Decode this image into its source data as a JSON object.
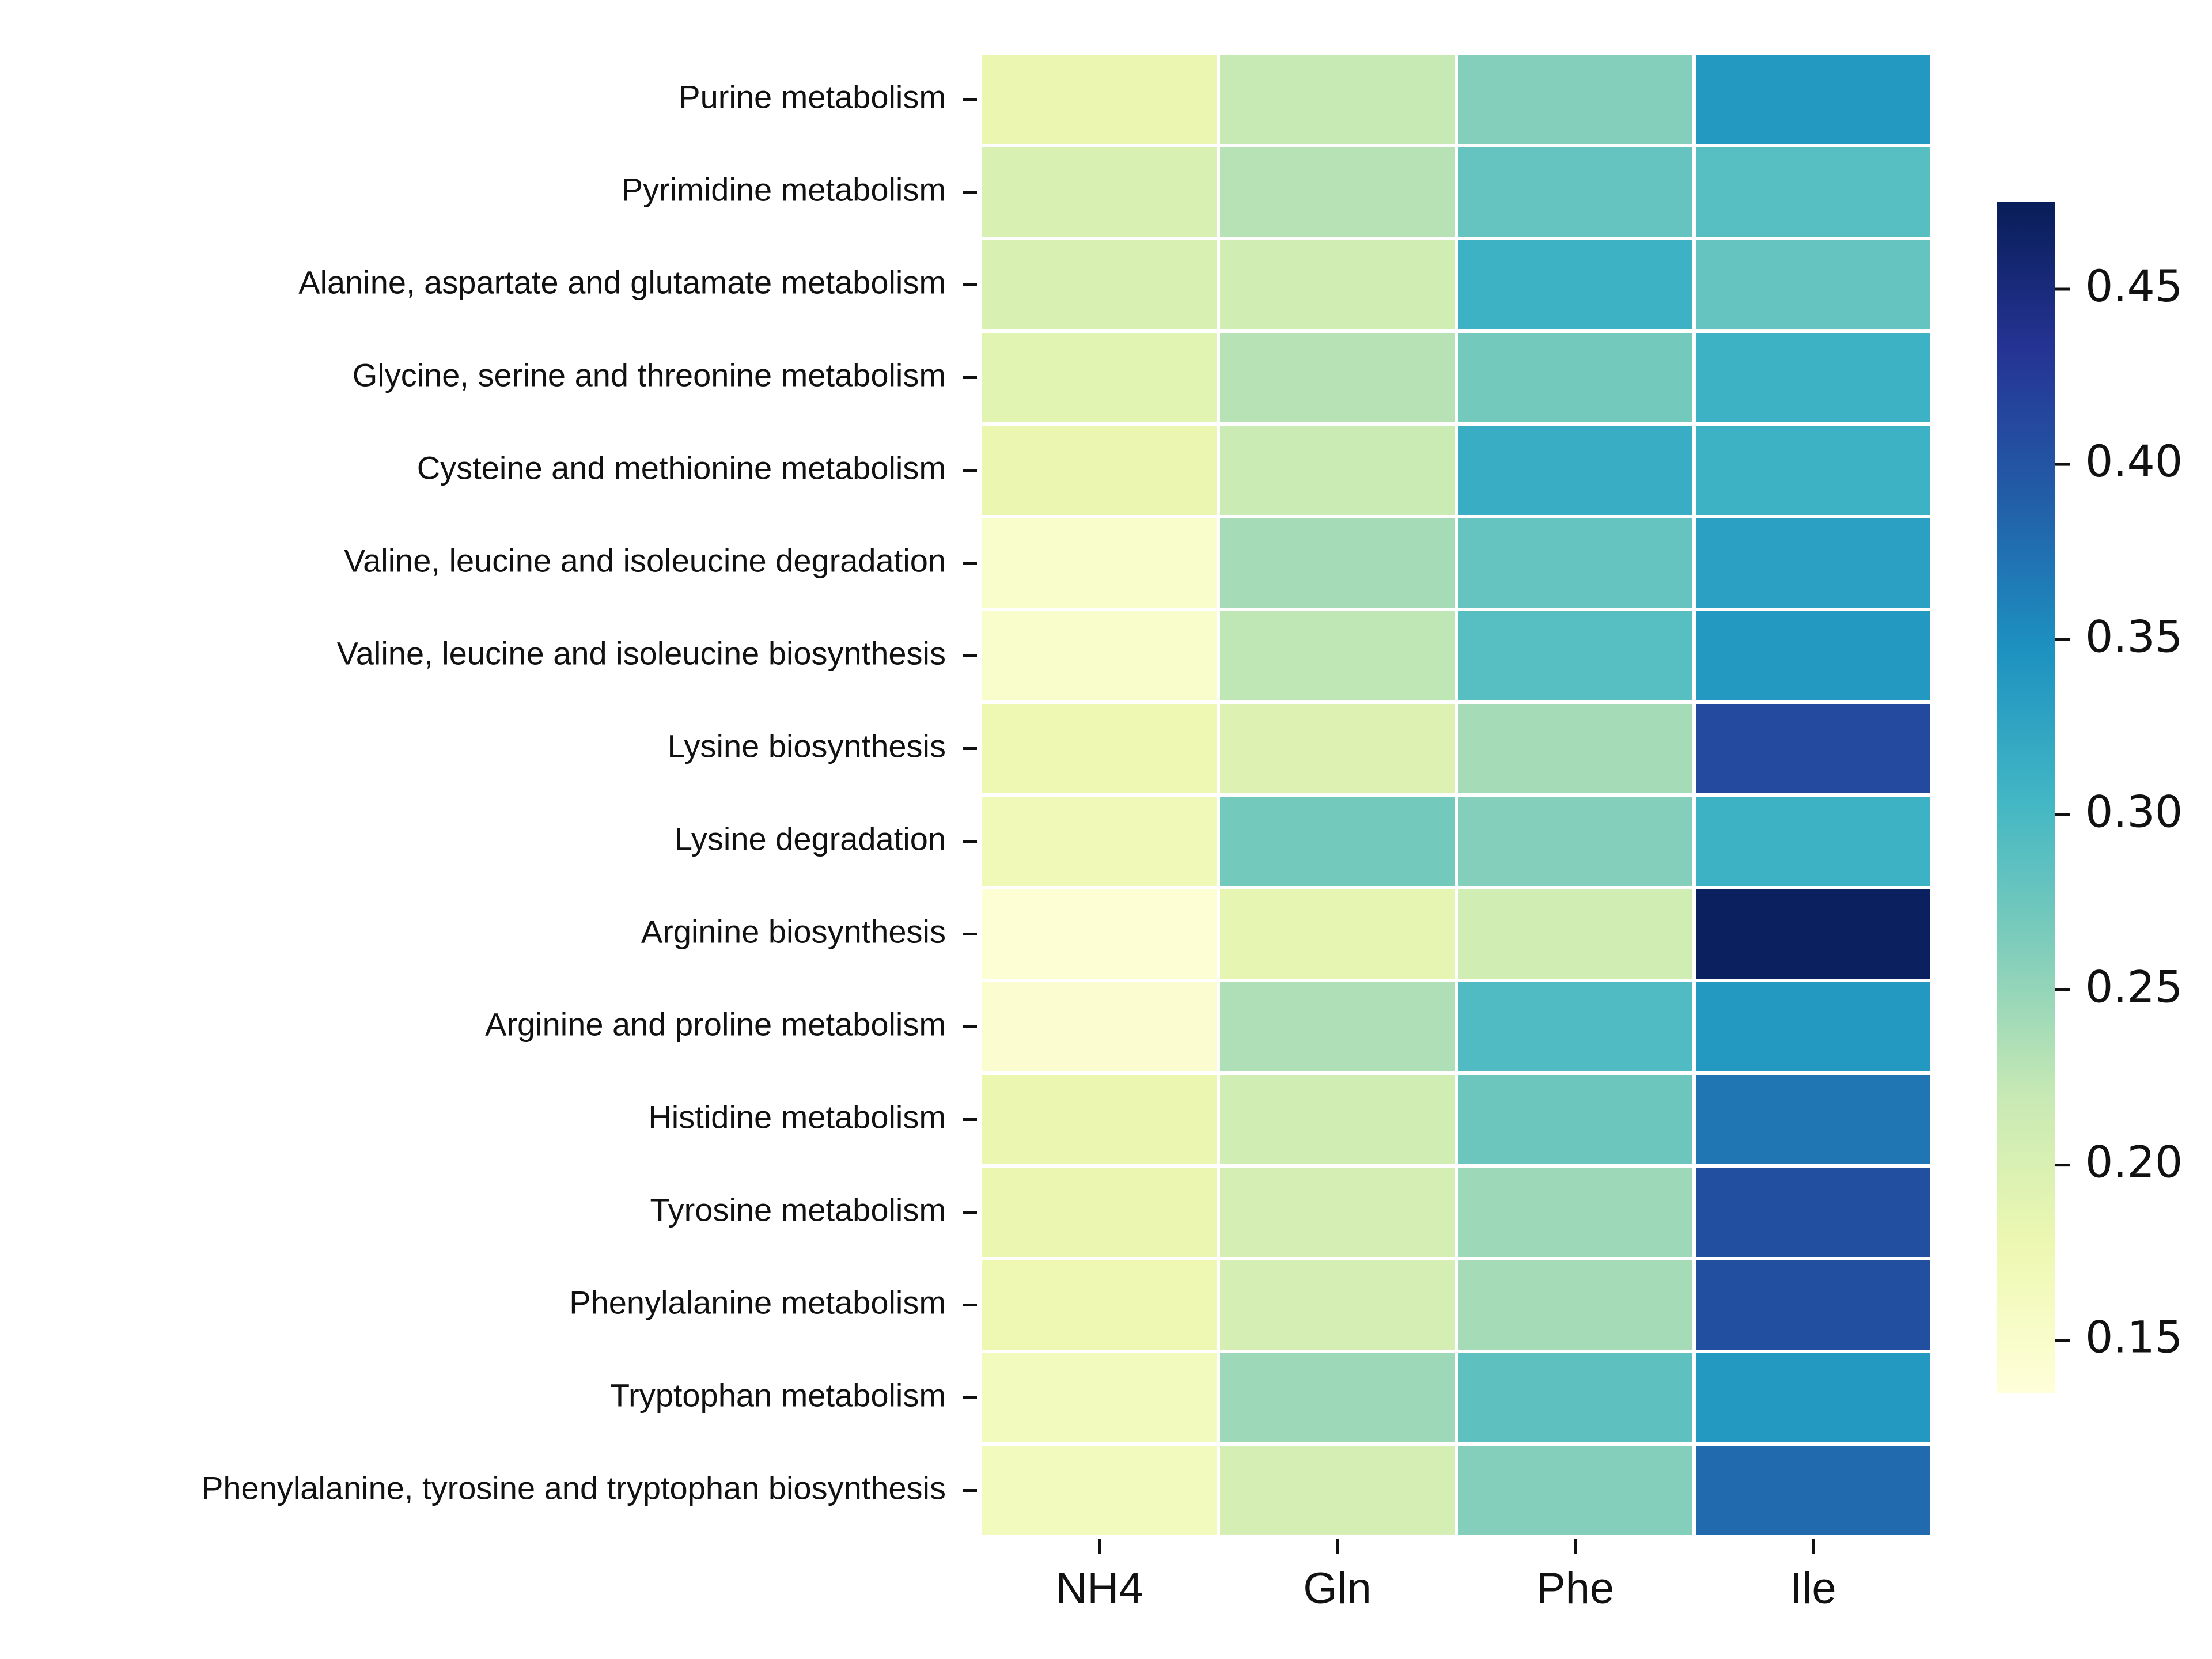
{
  "chart_data": {
    "type": "heatmap",
    "title": "",
    "xlabel": "",
    "ylabel": "",
    "columns": [
      "NH4",
      "Gln",
      "Phe",
      "Ile"
    ],
    "rows": [
      "Purine metabolism",
      "Pyrimidine metabolism",
      "Alanine, aspartate and glutamate metabolism",
      "Glycine, serine and threonine metabolism",
      "Cysteine and methionine metabolism",
      "Valine, leucine and isoleucine degradation",
      "Valine, leucine and isoleucine biosynthesis",
      "Lysine biosynthesis",
      "Lysine degradation",
      "Arginine biosynthesis",
      "Arginine and proline metabolism",
      "Histidine metabolism",
      "Tyrosine metabolism",
      "Phenylalanine metabolism",
      "Tryptophan metabolism",
      "Phenylalanine, tyrosine and tryptophan biosynthesis"
    ],
    "values": [
      [
        0.18,
        0.22,
        0.26,
        0.34
      ],
      [
        0.2,
        0.23,
        0.28,
        0.29
      ],
      [
        0.2,
        0.21,
        0.31,
        0.28
      ],
      [
        0.19,
        0.23,
        0.27,
        0.31
      ],
      [
        0.18,
        0.215,
        0.315,
        0.31
      ],
      [
        0.15,
        0.24,
        0.28,
        0.33
      ],
      [
        0.15,
        0.225,
        0.29,
        0.34
      ],
      [
        0.175,
        0.195,
        0.24,
        0.41
      ],
      [
        0.17,
        0.27,
        0.26,
        0.31
      ],
      [
        0.14,
        0.185,
        0.21,
        0.47
      ],
      [
        0.145,
        0.235,
        0.295,
        0.34
      ],
      [
        0.18,
        0.21,
        0.275,
        0.37
      ],
      [
        0.18,
        0.205,
        0.245,
        0.405
      ],
      [
        0.175,
        0.205,
        0.24,
        0.405
      ],
      [
        0.165,
        0.245,
        0.285,
        0.34
      ],
      [
        0.165,
        0.205,
        0.26,
        0.38
      ]
    ],
    "colorbar": {
      "min": 0.135,
      "max": 0.475,
      "ticks": [
        0.15,
        0.2,
        0.25,
        0.3,
        0.35,
        0.4,
        0.45
      ],
      "tick_labels": [
        "0.15",
        "0.20",
        "0.25",
        "0.30",
        "0.35",
        "0.40",
        "0.45"
      ],
      "colormap": "YlGnBu",
      "stops": [
        "#ffffd9",
        "#edf8b1",
        "#c7e9b4",
        "#7fcdbb",
        "#41b6c4",
        "#1d91c0",
        "#225ea8",
        "#253494",
        "#081d58"
      ]
    },
    "grid": true,
    "cell_border_color": "#ffffff",
    "legend": "right (colorbar)"
  }
}
